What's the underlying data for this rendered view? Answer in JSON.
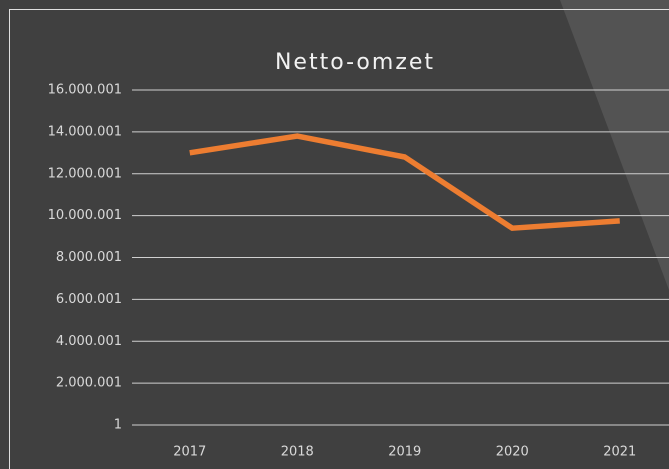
{
  "chart_data": {
    "type": "line",
    "title": "Netto-omzet",
    "categories": [
      "2017",
      "2018",
      "2019",
      "2020",
      "2021"
    ],
    "series": [
      {
        "name": "Netto-omzet",
        "color": "#ed7d31",
        "values": [
          13000000,
          13800000,
          12800000,
          9400000,
          9750000
        ]
      }
    ],
    "ylim": [
      1,
      16000001
    ],
    "yticks": [
      1,
      {
        "value": 2000001,
        "label": "2.000.001"
      },
      {
        "value": 4000001,
        "label": "4.000.001"
      },
      {
        "value": 6000001,
        "label": "6.000.001"
      },
      {
        "value": 8000001,
        "label": "8.000.001"
      },
      {
        "value": 10000001,
        "label": "10.000.001"
      },
      {
        "value": 12000001,
        "label": "12.000.001"
      },
      {
        "value": 14000001,
        "label": "14.000.001"
      },
      {
        "value": 16000001,
        "label": "16.000.001"
      }
    ],
    "grid": true
  }
}
